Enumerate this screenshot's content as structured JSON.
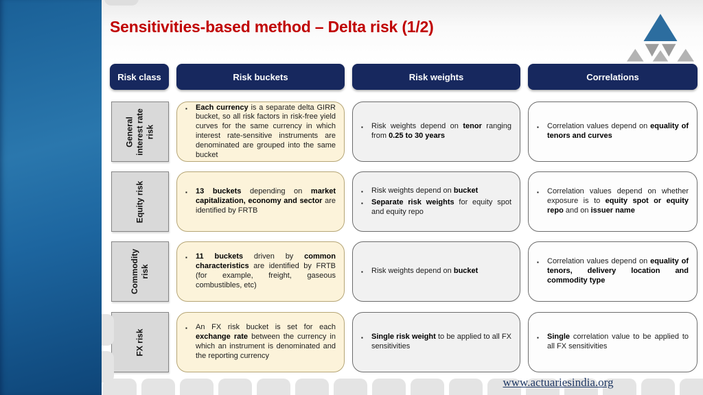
{
  "title": "Sensitivities-based method – Delta risk (1/2)",
  "footer": {
    "link": "www.actuariesindia.org"
  },
  "colors": {
    "header_navy": "#17285e",
    "title_red": "#c00000",
    "bucket_cream": "#fcf3da",
    "weights_gray": "#f1f1f1",
    "class_gray": "#d9d9d9",
    "left_panel_blue": "#1e6ba6",
    "logo_blue": "#2c6d9f",
    "logo_gray": "#a8a8a8"
  },
  "table": {
    "bullet_char": "▪",
    "headers": [
      {
        "label": "Risk class"
      },
      {
        "label": "Risk buckets"
      },
      {
        "label": "Risk weights"
      },
      {
        "label": "Correlations"
      }
    ],
    "rows": [
      {
        "risk_class": "General interest rate risk",
        "buckets": [
          [
            {
              "t": "Each currency",
              "b": true
            },
            {
              "t": " is a separate delta GIRR bucket, so all risk factors in risk-free yield curves for the same currency in which interest rate-sensitive instruments are denominated are grouped into the same bucket"
            }
          ]
        ],
        "weights": [
          [
            {
              "t": "Risk weights depend on "
            },
            {
              "t": "tenor",
              "b": true
            },
            {
              "t": " ranging from "
            },
            {
              "t": "0.25 to 30 years",
              "b": true
            }
          ]
        ],
        "correlations": [
          [
            {
              "t": "Correlation values depend on "
            },
            {
              "t": "equality of tenors and curves",
              "b": true
            }
          ]
        ]
      },
      {
        "risk_class": "Equity risk",
        "buckets": [
          [
            {
              "t": "13 buckets",
              "b": true
            },
            {
              "t": " depending on "
            },
            {
              "t": "market capitalization, economy and sector",
              "b": true
            },
            {
              "t": " are identified by FRTB"
            }
          ]
        ],
        "weights": [
          [
            {
              "t": "Risk weights depend on "
            },
            {
              "t": "bucket",
              "b": true
            }
          ],
          [
            {
              "t": "Separate risk weights",
              "b": true
            },
            {
              "t": " for equity spot and equity repo"
            }
          ]
        ],
        "correlations": [
          [
            {
              "t": "Correlation values depend on whether exposure is to "
            },
            {
              "t": "equity spot or equity repo",
              "b": true
            },
            {
              "t": " and on "
            },
            {
              "t": "issuer name",
              "b": true
            }
          ]
        ]
      },
      {
        "risk_class": "Commodity risk",
        "buckets": [
          [
            {
              "t": "11 buckets",
              "b": true
            },
            {
              "t": " driven by "
            },
            {
              "t": "common characteristics",
              "b": true
            },
            {
              "t": " are identified by FRTB (for example, freight, gaseous combustibles, etc)"
            }
          ]
        ],
        "weights": [
          [
            {
              "t": "Risk weights depend on "
            },
            {
              "t": "bucket",
              "b": true
            }
          ]
        ],
        "correlations": [
          [
            {
              "t": "Correlation values depend on "
            },
            {
              "t": "equality of tenors, delivery location and commodity type",
              "b": true
            }
          ]
        ]
      },
      {
        "risk_class": "FX risk",
        "buckets": [
          [
            {
              "t": "An FX risk bucket is set for each "
            },
            {
              "t": "exchange rate",
              "b": true
            },
            {
              "t": " between the currency in which an instrument is denominated and the reporting currency"
            }
          ]
        ],
        "weights": [
          [
            {
              "t": "Single risk weight",
              "b": true
            },
            {
              "t": " to be applied to all FX sensitivities"
            }
          ]
        ],
        "correlations": [
          [
            {
              "t": "Single",
              "b": true
            },
            {
              "t": " correlation value to be applied to all FX sensitivities"
            }
          ]
        ]
      }
    ]
  }
}
